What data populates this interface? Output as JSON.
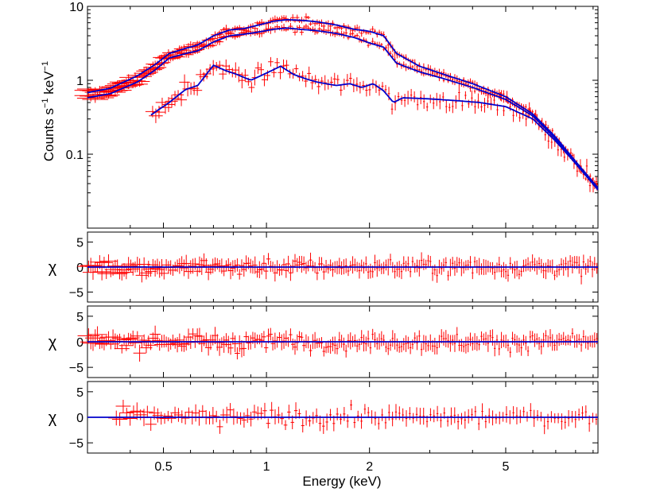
{
  "chart_data": [
    {
      "type": "scatter",
      "panel": "spectrum",
      "xscale": "log",
      "yscale": "log",
      "xlim": [
        0.3,
        9.3
      ],
      "ylim": [
        0.01,
        10
      ],
      "ylabel_main": "Counts s",
      "ylabel_sup1": "−1",
      "ylabel_mid": " keV",
      "ylabel_sup2": "−1",
      "yticks": [
        {
          "value": 0.1,
          "label": "0.1"
        },
        {
          "value": 1,
          "label": "1"
        },
        {
          "value": 10,
          "label": "10"
        }
      ],
      "data_color": "#ff0000",
      "model_color": "#0000cc",
      "series": [
        {
          "model": [
            [
              0.3,
              0.68
            ],
            [
              0.35,
              0.78
            ],
            [
              0.42,
              1.15
            ],
            [
              0.47,
              1.6
            ],
            [
              0.52,
              2.3
            ],
            [
              0.58,
              2.7
            ],
            [
              0.63,
              3.0
            ],
            [
              0.7,
              4.0
            ],
            [
              0.78,
              4.8
            ],
            [
              0.86,
              5.0
            ],
            [
              0.95,
              5.6
            ],
            [
              1.05,
              6.3
            ],
            [
              1.15,
              6.6
            ],
            [
              1.25,
              6.5
            ],
            [
              1.4,
              6.2
            ],
            [
              1.6,
              5.6
            ],
            [
              1.8,
              4.9
            ],
            [
              2.0,
              4.6
            ],
            [
              2.2,
              4.0
            ],
            [
              2.4,
              2.3
            ],
            [
              2.8,
              1.55
            ],
            [
              3.3,
              1.2
            ],
            [
              4.0,
              0.9
            ],
            [
              5.0,
              0.6
            ],
            [
              6.0,
              0.35
            ],
            [
              7.0,
              0.17
            ],
            [
              8.0,
              0.08
            ],
            [
              9.3,
              0.035
            ]
          ]
        },
        {
          "model": [
            [
              0.3,
              0.58
            ],
            [
              0.35,
              0.66
            ],
            [
              0.42,
              0.95
            ],
            [
              0.47,
              1.35
            ],
            [
              0.52,
              2.0
            ],
            [
              0.58,
              2.3
            ],
            [
              0.63,
              2.5
            ],
            [
              0.7,
              3.3
            ],
            [
              0.78,
              4.0
            ],
            [
              0.86,
              4.2
            ],
            [
              0.95,
              4.5
            ],
            [
              1.05,
              4.9
            ],
            [
              1.15,
              5.1
            ],
            [
              1.25,
              4.9
            ],
            [
              1.4,
              4.7
            ],
            [
              1.6,
              4.3
            ],
            [
              1.8,
              3.8
            ],
            [
              2.0,
              3.2
            ],
            [
              2.2,
              2.8
            ],
            [
              2.4,
              1.7
            ],
            [
              2.8,
              1.3
            ],
            [
              3.3,
              1.05
            ],
            [
              4.0,
              0.8
            ],
            [
              5.0,
              0.55
            ],
            [
              6.0,
              0.33
            ],
            [
              7.0,
              0.16
            ],
            [
              8.0,
              0.075
            ],
            [
              9.3,
              0.033
            ]
          ]
        },
        {
          "model": [
            [
              0.46,
              0.34
            ],
            [
              0.52,
              0.5
            ],
            [
              0.58,
              0.75
            ],
            [
              0.63,
              0.85
            ],
            [
              0.7,
              1.6
            ],
            [
              0.76,
              1.35
            ],
            [
              0.82,
              1.2
            ],
            [
              0.9,
              1.0
            ],
            [
              1.0,
              1.25
            ],
            [
              1.1,
              1.55
            ],
            [
              1.2,
              1.2
            ],
            [
              1.3,
              1.05
            ],
            [
              1.4,
              0.95
            ],
            [
              1.6,
              0.85
            ],
            [
              1.75,
              0.9
            ],
            [
              1.9,
              0.8
            ],
            [
              2.05,
              0.9
            ],
            [
              2.2,
              0.72
            ],
            [
              2.35,
              0.5
            ],
            [
              2.5,
              0.58
            ],
            [
              3.0,
              0.56
            ],
            [
              3.6,
              0.53
            ],
            [
              4.2,
              0.5
            ],
            [
              5.0,
              0.44
            ],
            [
              6.0,
              0.3
            ],
            [
              7.0,
              0.15
            ],
            [
              8.0,
              0.075
            ],
            [
              9.3,
              0.033
            ]
          ]
        }
      ]
    },
    {
      "type": "scatter",
      "panel": "residuals-1",
      "xscale": "log",
      "xlim": [
        0.3,
        9.3
      ],
      "ylim": [
        -7,
        7
      ],
      "ylabel": "χ",
      "yticks": [
        {
          "value": 5,
          "label": "5"
        },
        {
          "value": 0,
          "label": "0"
        },
        {
          "value": -5,
          "label": "−5"
        }
      ],
      "zero_line": 0
    },
    {
      "type": "scatter",
      "panel": "residuals-2",
      "xscale": "log",
      "xlim": [
        0.3,
        9.3
      ],
      "ylim": [
        -7,
        7
      ],
      "ylabel": "χ",
      "yticks": [
        {
          "value": 5,
          "label": "5"
        },
        {
          "value": 0,
          "label": "0"
        },
        {
          "value": -5,
          "label": "−5"
        }
      ],
      "zero_line": 0
    },
    {
      "type": "scatter",
      "panel": "residuals-3",
      "xscale": "log",
      "xlim": [
        0.3,
        9.3
      ],
      "ylim": [
        -7,
        7
      ],
      "ylabel": "χ",
      "yticks": [
        {
          "value": 5,
          "label": "5"
        },
        {
          "value": 0,
          "label": "0"
        },
        {
          "value": -5,
          "label": "−5"
        }
      ],
      "zero_line": 0
    }
  ],
  "x_axis": {
    "label": "Energy (keV)",
    "ticks": [
      {
        "value": 0.5,
        "label": "0.5"
      },
      {
        "value": 1,
        "label": "1"
      },
      {
        "value": 2,
        "label": "2"
      },
      {
        "value": 5,
        "label": "5"
      }
    ]
  }
}
